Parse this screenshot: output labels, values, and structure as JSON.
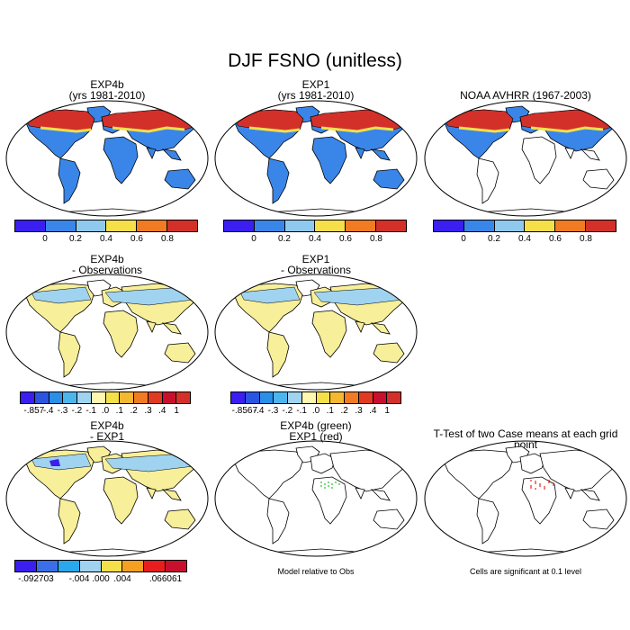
{
  "title": "DJF FSNO (unitless)",
  "panels": [
    {
      "t1": "EXP4b",
      "t2": "(yrs 1981-2010)"
    },
    {
      "t1": "EXP1",
      "t2": "(yrs 1981-2010)"
    },
    {
      "t1": "NOAA AVHRR (1967-2003)",
      "t2": ""
    },
    {
      "t1": "EXP4b",
      "t2": "- Observations"
    },
    {
      "t1": "EXP1",
      "t2": "- Observations"
    },
    {
      "t1": "EXP4b",
      "t2": "- EXP1"
    },
    {
      "t1": "EXP4b (green)",
      "t2": "EXP1 (red)"
    },
    {
      "t1": "T-Test of two Case means at each grid point",
      "t2": ""
    }
  ],
  "colorbars": {
    "row1": {
      "colors": [
        "#3b1ef0",
        "#3a86e8",
        "#8fcaee",
        "#f5e04a",
        "#f07b22",
        "#d3302a"
      ],
      "labels": [
        "0",
        "0.2",
        "0.4",
        "0.6",
        "0.8"
      ]
    },
    "row2a": {
      "colors": [
        "#3b1ef0",
        "#2a55e0",
        "#2a8fe6",
        "#4cb6ec",
        "#9fd3f0",
        "#fff6b0",
        "#f5e04a",
        "#f5b830",
        "#f07b22",
        "#e03a22",
        "#c8102e",
        "#d3302a"
      ],
      "labels": [
        "-.857",
        "-.4",
        "-.3",
        "-.2",
        "-.1",
        ".0",
        ".1",
        ".2",
        ".3",
        ".4",
        "1"
      ]
    },
    "row2b": {
      "colors": [
        "#3b1ef0",
        "#2a55e0",
        "#2a8fe6",
        "#4cb6ec",
        "#9fd3f0",
        "#fff6b0",
        "#f5e04a",
        "#f5b830",
        "#f07b22",
        "#e03a22",
        "#c8102e",
        "#d3302a"
      ],
      "labels": [
        "-.8567",
        "-.4",
        "-.3",
        "-.2",
        "-.1",
        ".0",
        ".1",
        ".2",
        ".3",
        ".4",
        "1"
      ]
    },
    "row3": {
      "colors": [
        "#3b1ef0",
        "#3a6fe8",
        "#2aa8ec",
        "#9fd3f0",
        "#f5e04a",
        "#f5a020",
        "#e81e1e",
        "#c8102e"
      ],
      "labels": [
        "-.092703",
        "-.004",
        ".000",
        ".004",
        ".066061"
      ]
    }
  },
  "notes": {
    "model_rel": "Model relative to Obs",
    "signif": "Cells are significant at 0.1 level"
  },
  "colors": {
    "snow_high": "#d3302a",
    "snow_mid": "#f5e04a",
    "blue": "#3a86e8",
    "diff_yellow": "#f8ef9a",
    "diff_light": "#9fd3f0"
  }
}
